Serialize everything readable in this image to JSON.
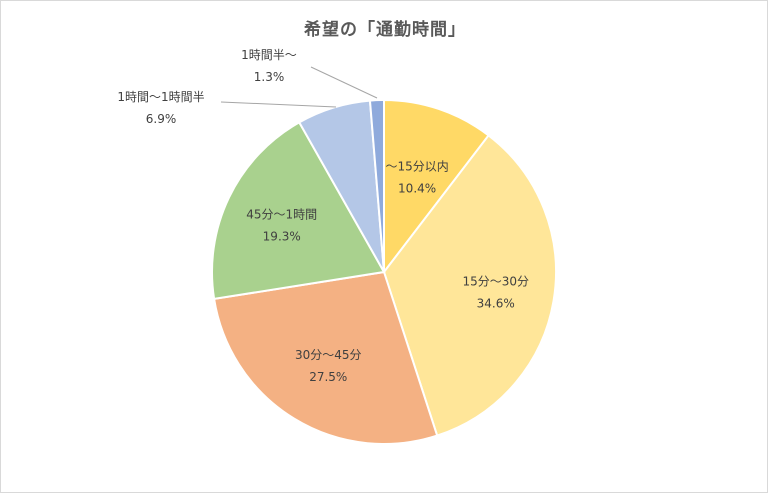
{
  "chart_data": {
    "type": "pie",
    "title": "希望の「通勤時間」",
    "start_angle_deg": 0,
    "direction": "clockwise",
    "slices": [
      {
        "label": "～15分以内",
        "value": 10.4,
        "value_label": "10.4%",
        "color": "#FFD966"
      },
      {
        "label": "15分～30分",
        "value": 34.6,
        "value_label": "34.6%",
        "color": "#FFE699"
      },
      {
        "label": "30分～45分",
        "value": 27.5,
        "value_label": "27.5%",
        "color": "#F4B183"
      },
      {
        "label": "45分～1時間",
        "value": 19.3,
        "value_label": "19.3%",
        "color": "#A9D18E"
      },
      {
        "label": "1時間～1時間半",
        "value": 6.9,
        "value_label": "6.9%",
        "color": "#B4C7E7"
      },
      {
        "label": "1時間半～",
        "value": 1.3,
        "value_label": "1.3%",
        "color": "#8FAADC"
      }
    ],
    "legend": "none"
  }
}
